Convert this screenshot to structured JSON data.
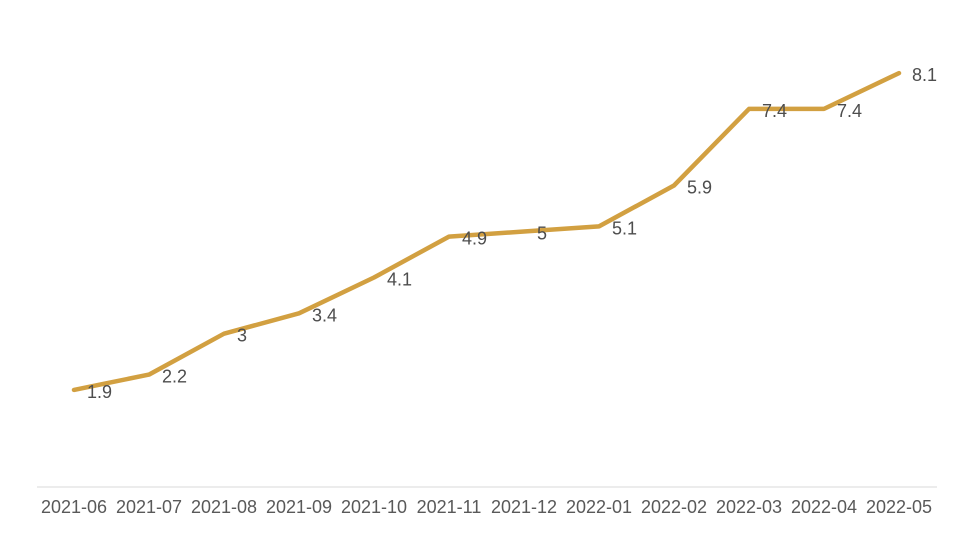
{
  "chart_data": {
    "type": "line",
    "title": "",
    "xlabel": "",
    "ylabel": "",
    "categories": [
      "2021-06",
      "2021-07",
      "2021-08",
      "2021-09",
      "2021-10",
      "2021-11",
      "2021-12",
      "2022-01",
      "2022-02",
      "2022-03",
      "2022-04",
      "2022-05"
    ],
    "values": [
      1.9,
      2.2,
      3,
      3.4,
      4.1,
      4.9,
      5,
      5.1,
      5.9,
      7.4,
      7.4,
      8.1
    ],
    "data_labels": [
      "1.9",
      "2.2",
      "3",
      "3.4",
      "4.1",
      "4.9",
      "5",
      "5.1",
      "5.9",
      "7.4",
      "7.4",
      "8.1"
    ],
    "ylim": [
      0,
      9.5
    ],
    "grid": false,
    "legend": null,
    "y_axis_visible": false,
    "colors": {
      "line": "#D2A041",
      "data_label": "#4d4d4d",
      "tick_label": "#595959",
      "axis_line": "#d9d9d9",
      "frame_border": "#b04a47",
      "background": "#ffffff"
    }
  }
}
